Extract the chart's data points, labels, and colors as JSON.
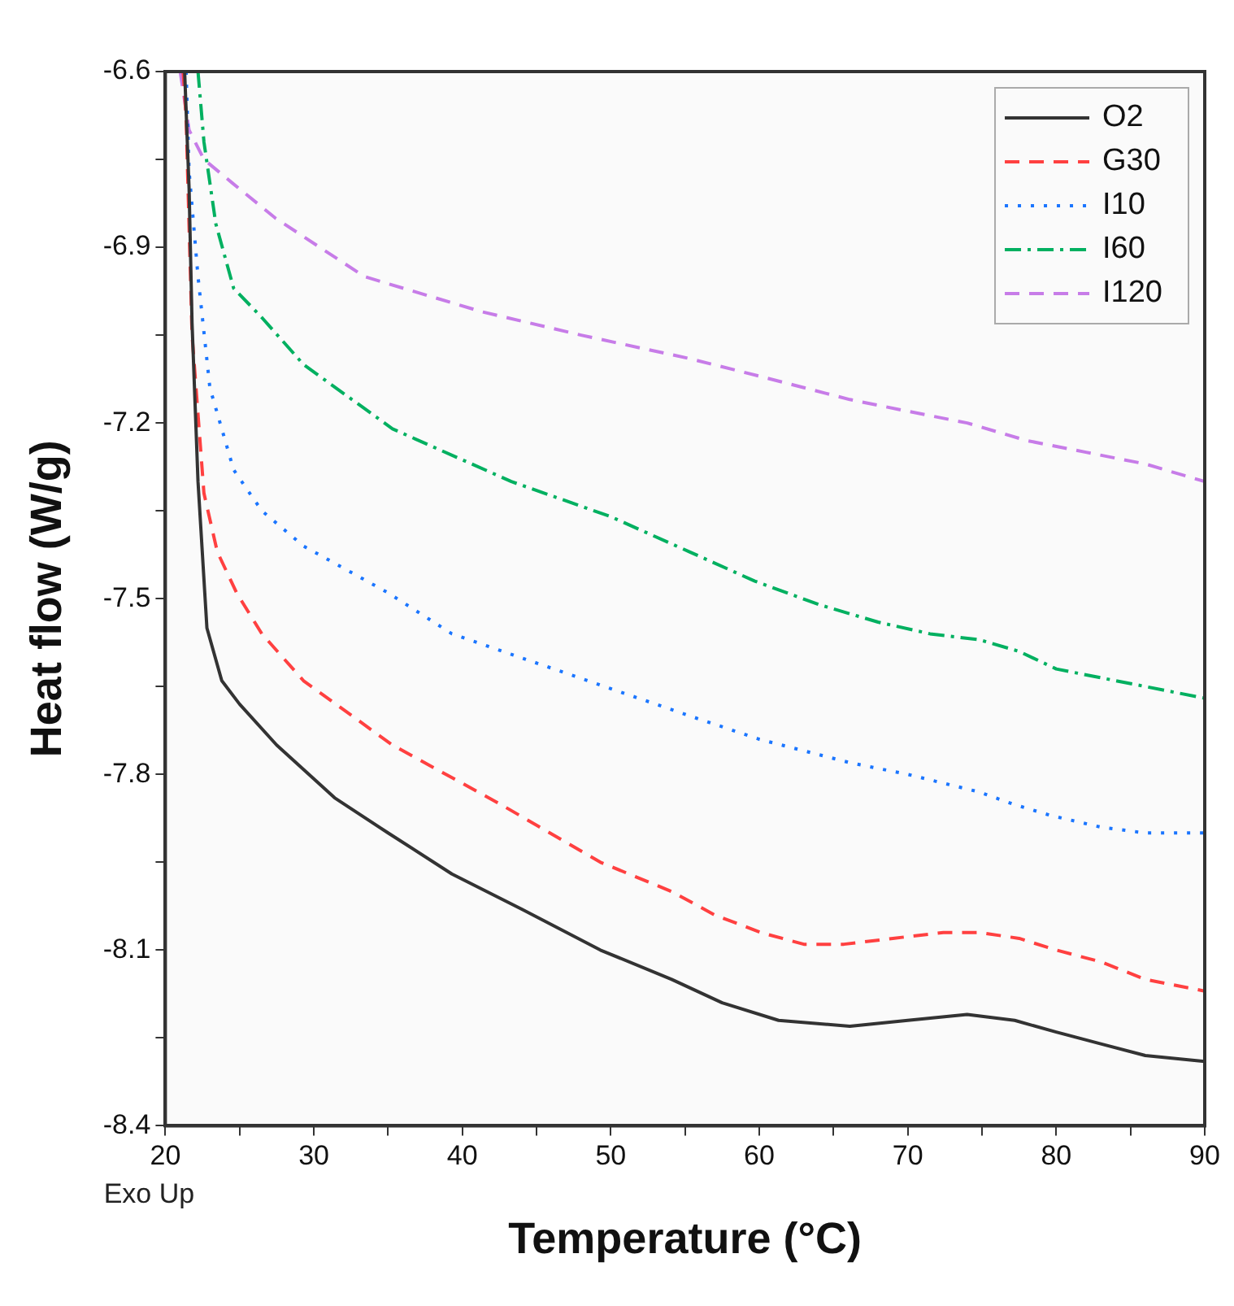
{
  "chart_data": {
    "type": "line",
    "xlabel": "Temperature (°C)",
    "ylabel": "Heat flow (W/g)",
    "annotations": [
      "Exo Up"
    ],
    "xlim": [
      20,
      90
    ],
    "xticks": [
      20,
      {
        "value": 25,
        "label": null
      },
      30,
      {
        "value": 35,
        "label": null
      },
      40,
      {
        "value": 45,
        "label": null
      },
      50,
      {
        "value": 55,
        "label": null
      },
      60,
      {
        "value": 65,
        "label": null
      },
      70,
      {
        "value": 75,
        "label": null
      },
      80,
      {
        "value": 85,
        "label": null
      },
      90
    ],
    "ylim": [
      -8.4,
      -6.6
    ],
    "yticks": [
      -8.4,
      {
        "value": -8.25,
        "label": null
      },
      -8.1,
      {
        "value": -7.95,
        "label": null
      },
      -7.8,
      {
        "value": -7.65,
        "label": null
      },
      -7.5,
      {
        "value": -7.35,
        "label": null
      },
      -7.2,
      {
        "value": -7.05,
        "label": null
      },
      -6.9,
      {
        "value": -6.75,
        "label": null
      },
      -6.6
    ],
    "legend": "top right",
    "marker": "none",
    "series": [
      {
        "name": "O2",
        "color": "#333333",
        "line_style": "solid",
        "x": [
          21.3,
          21.6,
          21.8,
          22.2,
          22.8,
          23.8,
          25,
          27.5,
          31.4,
          35,
          39.3,
          44,
          49.3,
          54.1,
          57.5,
          61.3,
          66.1,
          70,
          74,
          77.2,
          80,
          83,
          86,
          90
        ],
        "values": [
          -6.6,
          -6.8,
          -7.03,
          -7.3,
          -7.55,
          -7.64,
          -7.68,
          -7.75,
          -7.84,
          -7.9,
          -7.97,
          -8.03,
          -8.1,
          -8.15,
          -8.19,
          -8.22,
          -8.23,
          -8.22,
          -8.21,
          -8.22,
          -8.24,
          -8.26,
          -8.28,
          -8.29
        ]
      },
      {
        "name": "G30",
        "color": "#ff4040",
        "line_style": "dashed",
        "x": [
          21.2,
          21.4,
          21.8,
          22.6,
          23.5,
          24.8,
          26.5,
          29.3,
          35.3,
          42.5,
          49.3,
          54.1,
          57,
          60.1,
          63,
          65.7,
          69,
          72.4,
          74.8,
          77.5,
          80,
          83,
          86,
          90
        ],
        "values": [
          -6.6,
          -6.68,
          -7.05,
          -7.32,
          -7.42,
          -7.49,
          -7.56,
          -7.64,
          -7.75,
          -7.85,
          -7.95,
          -8.0,
          -8.04,
          -8.07,
          -8.09,
          -8.09,
          -8.08,
          -8.07,
          -8.07,
          -8.08,
          -8.1,
          -8.12,
          -8.15,
          -8.17
        ]
      },
      {
        "name": "I10",
        "color": "#1a75ff",
        "line_style": "dotted",
        "x": [
          21.4,
          21.6,
          22.2,
          23,
          24.6,
          26.5,
          29.3,
          35,
          39.3,
          47.3,
          55.3,
          60,
          66.1,
          70,
          74.8,
          77,
          79.6,
          83,
          86,
          90
        ],
        "values": [
          -6.6,
          -6.77,
          -6.95,
          -7.14,
          -7.28,
          -7.35,
          -7.41,
          -7.49,
          -7.56,
          -7.63,
          -7.7,
          -7.74,
          -7.78,
          -7.8,
          -7.83,
          -7.85,
          -7.87,
          -7.89,
          -7.9,
          -7.9
        ]
      },
      {
        "name": "I60",
        "color": "#00b060",
        "line_style": "dashdot",
        "x": [
          22.2,
          22.6,
          23.4,
          24.6,
          26.5,
          29.3,
          35.3,
          43.3,
          50,
          55.3,
          59.7,
          64,
          68,
          71.5,
          74.8,
          77.5,
          80,
          86,
          90
        ],
        "values": [
          -6.6,
          -6.72,
          -6.86,
          -6.97,
          -7.02,
          -7.1,
          -7.21,
          -7.3,
          -7.36,
          -7.42,
          -7.47,
          -7.51,
          -7.54,
          -7.56,
          -7.57,
          -7.59,
          -7.62,
          -7.65,
          -7.67
        ]
      },
      {
        "name": "I120",
        "color": "#c77ce8",
        "line_style": "dashed",
        "x": [
          21,
          21.6,
          22.6,
          24.5,
          27.4,
          33.4,
          41.3,
          48,
          55.3,
          60,
          66.1,
          70,
          74,
          78,
          82,
          86,
          90
        ],
        "values": [
          -6.6,
          -6.7,
          -6.75,
          -6.79,
          -6.85,
          -6.95,
          -7.01,
          -7.05,
          -7.09,
          -7.12,
          -7.16,
          -7.18,
          -7.2,
          -7.23,
          -7.25,
          -7.27,
          -7.3
        ]
      }
    ]
  }
}
